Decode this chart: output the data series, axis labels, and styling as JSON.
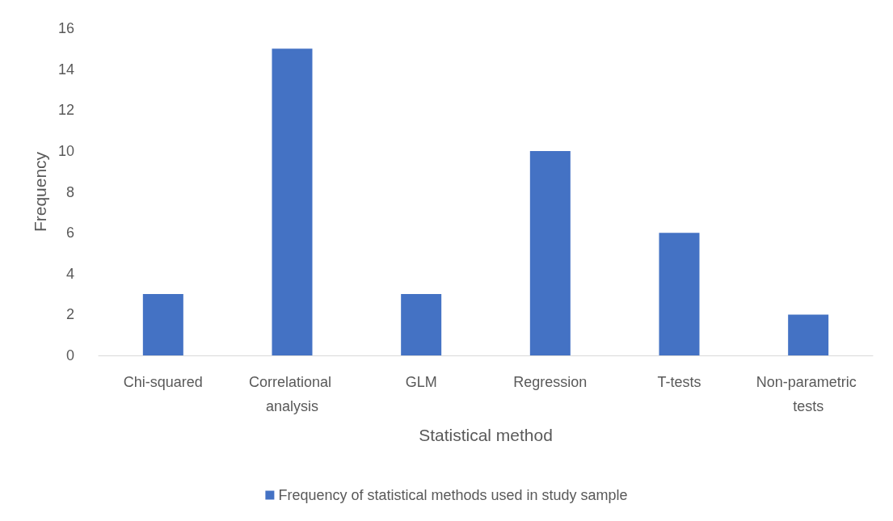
{
  "chart_data": {
    "type": "bar",
    "categories": [
      "Chi-squared",
      "Correlational analysis",
      "GLM",
      "Regression",
      "T-tests",
      "Non-parametric tests"
    ],
    "series": [
      {
        "name": "Frequency of statistical methods used in study sample",
        "color": "#4472c4",
        "values": [
          3,
          15,
          3,
          10,
          6,
          2
        ]
      }
    ],
    "xlabel": "Statistical method",
    "ylabel": "Frequency",
    "ylim": [
      0,
      16
    ],
    "yticks": [
      0,
      2,
      4,
      6,
      8,
      10,
      12,
      14,
      16
    ],
    "grid": false,
    "legend": "bottom"
  }
}
